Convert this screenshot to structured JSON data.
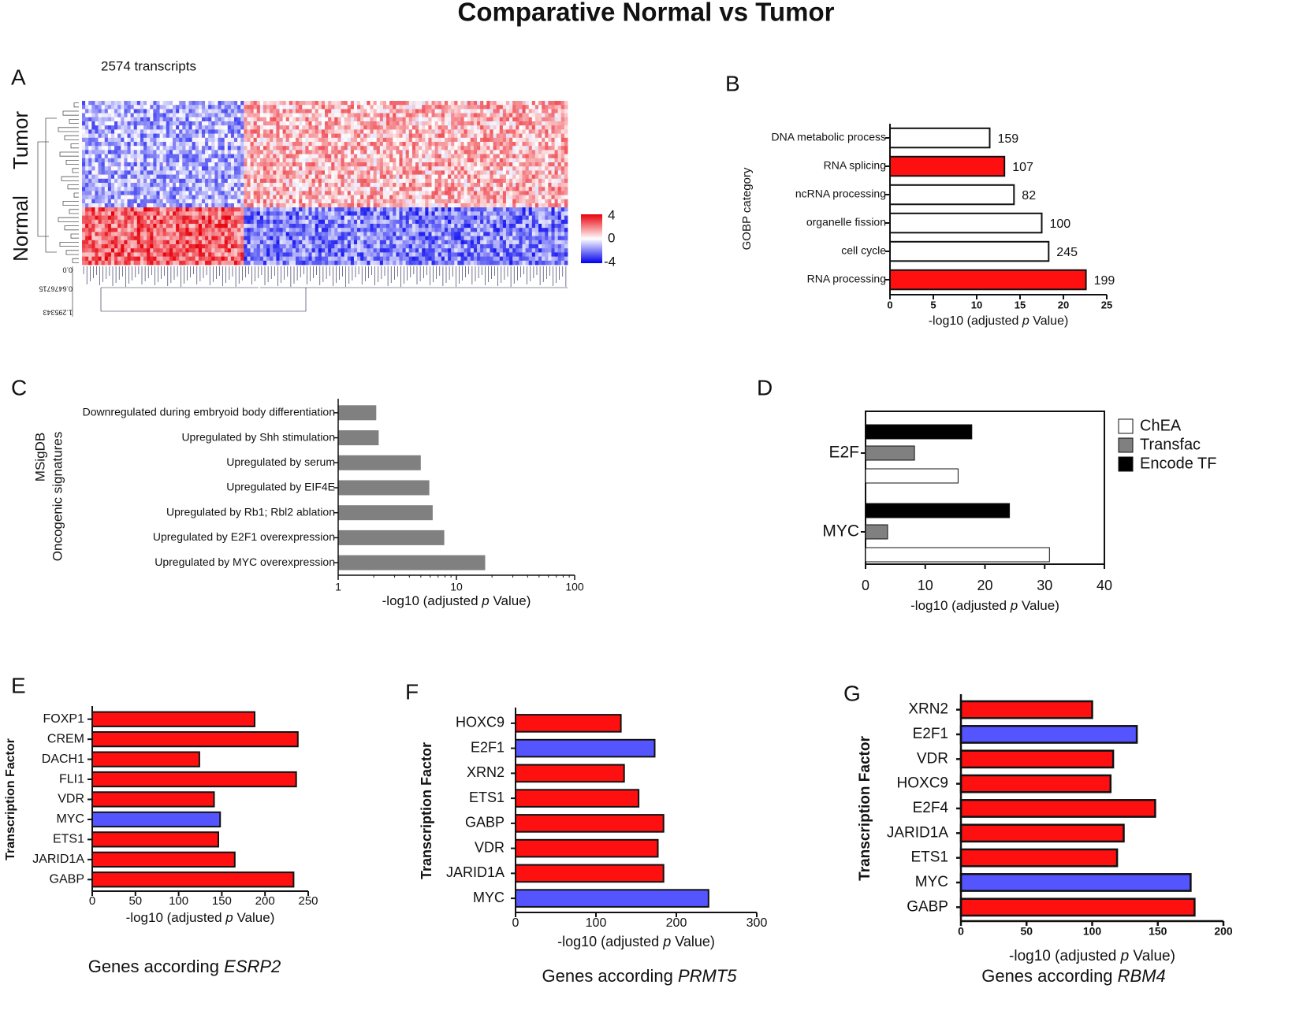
{
  "title": "Comparative Normal vs Tumor",
  "colors": {
    "red": "#ff1010",
    "blue": "#5555ff",
    "gray": "#808080",
    "black": "#000000",
    "white": "#ffffff"
  },
  "heatmap_colors": {
    "high": "#e8000b",
    "mid": "#ffffff",
    "low": "#0000ee"
  },
  "chart_data": [
    {
      "panel": "A",
      "type": "heatmap",
      "annotation": "2574 transcripts",
      "row_groups": [
        "Tumor",
        "Normal"
      ],
      "color_scale": {
        "min": -4,
        "mid": 0,
        "max": 4
      },
      "colorbar_ticks": [
        "4",
        "0",
        "-4"
      ],
      "dendrogram_ticks": [
        "0.0",
        "0.6476715",
        "1.295343"
      ]
    },
    {
      "panel": "B",
      "type": "bar",
      "ylabel": "GOBP category",
      "xlabel_parts": [
        "-log10 (adjusted ",
        "p",
        " Value)"
      ],
      "xlim": [
        0,
        25
      ],
      "xticks": [
        0,
        5,
        10,
        15,
        20,
        25
      ],
      "categories": [
        "DNA metabolic process",
        "RNA splicing",
        "ncRNA processing",
        "organelle fission",
        "cell cycle",
        "RNA processing"
      ],
      "values": [
        11.5,
        13.2,
        14.3,
        17.5,
        18.3,
        22.6
      ],
      "labels": [
        "159",
        "107",
        "82",
        "100",
        "245",
        "199"
      ],
      "fills": [
        "white",
        "red",
        "white",
        "white",
        "white",
        "red"
      ]
    },
    {
      "panel": "C",
      "type": "bar",
      "ylabel_lines": [
        "MSigDB",
        "Oncogenic signatures"
      ],
      "xlabel_parts": [
        "-log10 (adjusted ",
        "p",
        " Value)"
      ],
      "xscale": "log",
      "xlim": [
        1,
        100
      ],
      "xticks": [
        "1",
        "10",
        "100"
      ],
      "categories": [
        "Downregulated during embryoid body differentiation",
        "Upregulated by Shh stimulation",
        "Upregulated by serum",
        "Upregulated by EIF4E",
        "Upregulated by Rb1; Rbl2 ablation",
        "Upregulated by E2F1 overexpression",
        "Upregulated by MYC overexpression"
      ],
      "values": [
        2.1,
        2.2,
        5.0,
        5.9,
        6.3,
        7.9,
        17.5
      ],
      "fill": "gray"
    },
    {
      "panel": "D",
      "type": "bar",
      "xlabel_parts": [
        "-log10 (adjusted ",
        "p",
        " Value)"
      ],
      "xlim": [
        0,
        40
      ],
      "xticks": [
        0,
        10,
        20,
        30,
        40
      ],
      "categories": [
        "E2F",
        "MYC"
      ],
      "series": [
        {
          "name": "ChEA",
          "values": [
            15.5,
            30.8
          ],
          "fill": "white"
        },
        {
          "name": "Transfac",
          "values": [
            8.2,
            3.7
          ],
          "fill": "gray"
        },
        {
          "name": "Encode TF",
          "values": [
            17.8,
            24.1
          ],
          "fill": "black"
        }
      ],
      "legend_position": "top-right"
    },
    {
      "panel": "E",
      "type": "bar",
      "ylabel": "Transcription Factor",
      "xlabel_parts": [
        "-log10 (adjusted ",
        "p",
        " Value)"
      ],
      "caption_parts": [
        "Genes according ",
        "ESRP2"
      ],
      "xlim": [
        0,
        250
      ],
      "xticks": [
        0,
        50,
        100,
        150,
        200,
        250
      ],
      "categories": [
        "FOXP1",
        "CREM",
        "DACH1",
        "FLI1",
        "VDR",
        "MYC",
        "ETS1",
        "JARID1A",
        "GABP"
      ],
      "values": [
        188,
        238,
        124,
        236,
        141,
        148,
        146,
        165,
        233
      ],
      "fills": [
        "red",
        "red",
        "red",
        "red",
        "red",
        "blue",
        "red",
        "red",
        "red"
      ]
    },
    {
      "panel": "F",
      "type": "bar",
      "ylabel": "Transcription Factor",
      "xlabel_parts": [
        "-log10 (adjusted ",
        "p",
        " Value)"
      ],
      "caption_parts": [
        "Genes according ",
        "PRMT5"
      ],
      "xlim": [
        0,
        300
      ],
      "xticks": [
        0,
        100,
        200,
        300
      ],
      "categories": [
        "HOXC9",
        "E2F1",
        "XRN2",
        "ETS1",
        "GABP",
        "VDR",
        "JARID1A",
        "MYC"
      ],
      "values": [
        131,
        173,
        135,
        153,
        184,
        177,
        184,
        240
      ],
      "fills": [
        "red",
        "blue",
        "red",
        "red",
        "red",
        "red",
        "red",
        "blue"
      ]
    },
    {
      "panel": "G",
      "type": "bar",
      "ylabel": "Transcription Factor",
      "xlabel_parts": [
        "-log10 (adjusted ",
        "p",
        " Value)"
      ],
      "caption_parts": [
        "Genes according ",
        "RBM4"
      ],
      "xlim": [
        0,
        200
      ],
      "xticks": [
        0,
        50,
        100,
        150,
        200
      ],
      "categories": [
        "XRN2",
        "E2F1",
        "VDR",
        "HOXC9",
        "E2F4",
        "JARID1A",
        "ETS1",
        "MYC",
        "GABP"
      ],
      "values": [
        100,
        134,
        116,
        114,
        148,
        124,
        119,
        175,
        178
      ],
      "fills": [
        "red",
        "blue",
        "red",
        "red",
        "red",
        "red",
        "red",
        "blue",
        "red"
      ]
    }
  ]
}
